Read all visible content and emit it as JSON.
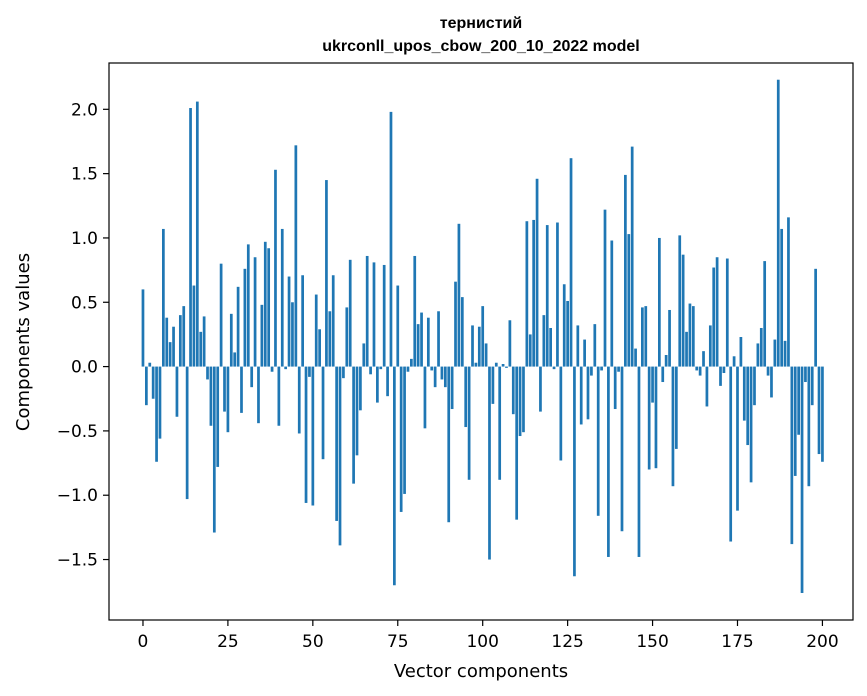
{
  "chart_data": {
    "type": "bar",
    "title_line1": "тернистий",
    "title_line2": "ukrconll_upos_cbow_200_10_2022 model",
    "xlabel": "Vector components",
    "ylabel": "Components values",
    "xlim": [
      -10,
      209
    ],
    "ylim": [
      -1.97,
      2.36
    ],
    "xticks": [
      0,
      25,
      50,
      75,
      100,
      125,
      150,
      175,
      200
    ],
    "yticks": [
      -1.5,
      -1.0,
      -0.5,
      0.0,
      0.5,
      1.0,
      1.5,
      2.0
    ],
    "ytick_labels": [
      "−1.5",
      "−1.0",
      "−0.5",
      "0.0",
      "0.5",
      "1.0",
      "1.5",
      "2.0"
    ],
    "bar_color": "#1f77b4",
    "values": [
      0.6,
      -0.3,
      0.03,
      -0.25,
      -0.74,
      -0.56,
      1.07,
      0.38,
      0.19,
      0.31,
      -0.39,
      0.4,
      0.47,
      -1.03,
      2.01,
      0.63,
      2.06,
      0.27,
      0.39,
      -0.1,
      -0.46,
      -1.29,
      -0.78,
      0.8,
      -0.35,
      -0.51,
      0.41,
      0.11,
      0.62,
      -0.36,
      0.76,
      0.95,
      -0.16,
      0.85,
      -0.44,
      0.48,
      0.97,
      0.92,
      -0.04,
      1.53,
      -0.46,
      1.07,
      -0.02,
      0.7,
      0.5,
      1.72,
      -0.52,
      0.71,
      -1.06,
      -0.08,
      -1.08,
      0.56,
      0.29,
      -0.72,
      1.45,
      0.43,
      0.71,
      -1.2,
      -1.39,
      -0.09,
      0.46,
      0.83,
      -0.91,
      -0.69,
      -0.34,
      0.18,
      0.86,
      -0.06,
      0.81,
      -0.28,
      -0.02,
      0.79,
      -0.23,
      1.98,
      -1.7,
      0.63,
      -1.13,
      -0.99,
      -0.04,
      0.06,
      0.86,
      0.33,
      0.42,
      -0.48,
      0.38,
      -0.03,
      -0.16,
      0.43,
      -0.1,
      -0.16,
      -1.21,
      -0.33,
      0.66,
      1.11,
      0.54,
      -0.47,
      -0.88,
      0.32,
      0.03,
      0.31,
      0.47,
      0.18,
      -1.5,
      -0.29,
      0.03,
      -0.88,
      0.02,
      -0.01,
      0.36,
      -0.37,
      -1.19,
      -0.54,
      -0.51,
      1.13,
      0.25,
      1.14,
      1.46,
      -0.35,
      0.4,
      1.1,
      0.3,
      -0.02,
      1.12,
      -0.73,
      0.64,
      0.51,
      1.62,
      -1.63,
      0.32,
      -0.45,
      0.21,
      -0.41,
      -0.07,
      0.33,
      -1.16,
      -0.03,
      1.22,
      -1.48,
      0.98,
      -0.33,
      -0.04,
      -1.28,
      1.49,
      1.03,
      1.71,
      0.14,
      -1.48,
      0.46,
      0.47,
      -0.8,
      -0.28,
      -0.79,
      1.0,
      -0.12,
      0.09,
      0.44,
      -0.93,
      -0.64,
      1.02,
      0.87,
      0.27,
      0.49,
      0.47,
      -0.03,
      -0.07,
      0.12,
      -0.31,
      0.32,
      0.77,
      0.85,
      -0.15,
      -0.05,
      0.84,
      -1.36,
      0.08,
      -1.12,
      0.23,
      -0.42,
      -0.61,
      -0.9,
      -0.3,
      0.18,
      0.3,
      0.82,
      -0.07,
      -0.24,
      0.21,
      2.23,
      1.07,
      0.2,
      1.16,
      -1.38,
      -0.85,
      -0.53,
      -1.76,
      -0.12,
      -0.93,
      -0.3,
      0.76,
      -0.68,
      -0.74
    ]
  }
}
